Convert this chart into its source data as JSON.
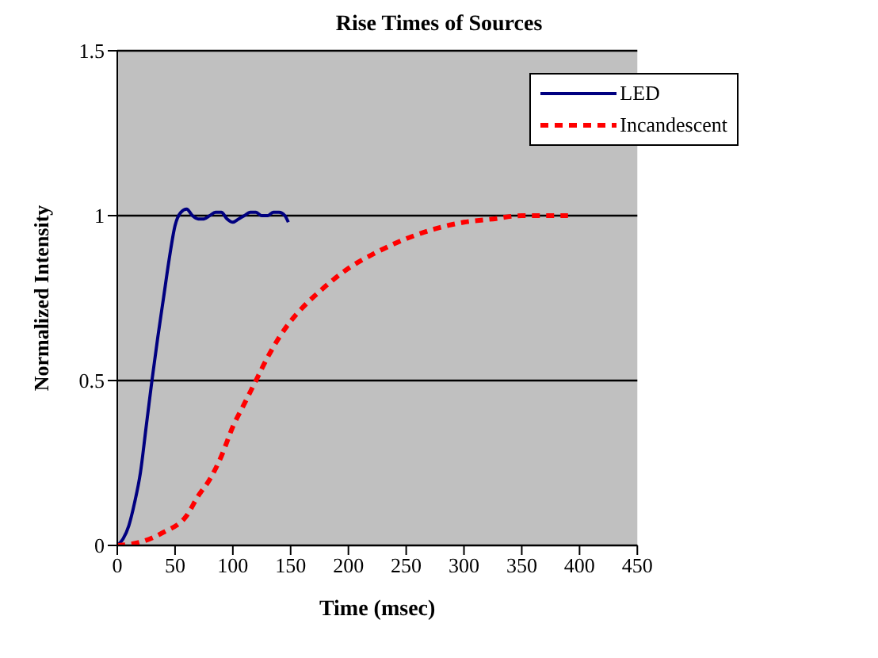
{
  "chart_data": {
    "type": "line",
    "title": "Rise Times of Sources",
    "xlabel": "Time (msec)",
    "ylabel": "Normalized Intensity",
    "xlim": [
      0,
      450
    ],
    "xticks": [
      0,
      50,
      100,
      150,
      200,
      250,
      300,
      350,
      400,
      450
    ],
    "ylim": [
      0,
      1.5
    ],
    "yticks": [
      0,
      0.5,
      1,
      1.5
    ],
    "grid": "y",
    "legend": "top right",
    "marker": "none",
    "series": [
      {
        "name": "LED",
        "color": "#000080",
        "line_style": "solid",
        "x": [
          0,
          5,
          10,
          15,
          20,
          25,
          30,
          35,
          40,
          45,
          50,
          55,
          60,
          65,
          70,
          75,
          80,
          85,
          90,
          95,
          100,
          105,
          110,
          115,
          120,
          125,
          130,
          135,
          140,
          145,
          148
        ],
        "values": [
          0,
          0.02,
          0.06,
          0.13,
          0.22,
          0.36,
          0.5,
          0.63,
          0.75,
          0.87,
          0.97,
          1.01,
          1.02,
          1.0,
          0.99,
          0.99,
          1.0,
          1.01,
          1.01,
          0.99,
          0.98,
          0.99,
          1.0,
          1.01,
          1.01,
          1.0,
          1.0,
          1.01,
          1.01,
          1.0,
          0.98
        ]
      },
      {
        "name": "Incandescent",
        "color": "#ff0000",
        "line_style": "dotted",
        "x": [
          0,
          20,
          40,
          60,
          70,
          80,
          90,
          100,
          110,
          120,
          130,
          140,
          150,
          160,
          175,
          200,
          225,
          250,
          275,
          300,
          325,
          350,
          390
        ],
        "values": [
          0,
          0.01,
          0.04,
          0.09,
          0.15,
          0.2,
          0.27,
          0.36,
          0.43,
          0.5,
          0.57,
          0.63,
          0.68,
          0.72,
          0.77,
          0.84,
          0.89,
          0.93,
          0.96,
          0.98,
          0.99,
          1.0,
          1.0
        ]
      }
    ]
  }
}
